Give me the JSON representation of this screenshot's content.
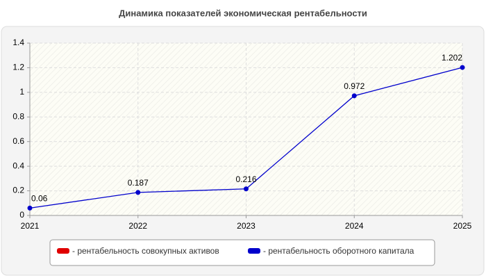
{
  "chart_data": {
    "type": "line",
    "title": "Динамика показателей экономическая рентабельности",
    "x": [
      2021,
      2022,
      2023,
      2024,
      2025
    ],
    "xlim": [
      2021,
      2025
    ],
    "xticks": [
      2021,
      2022,
      2023,
      2024,
      2025
    ],
    "ylim": [
      0,
      1.4
    ],
    "yticks": [
      0,
      0.2,
      0.4,
      0.6,
      0.8,
      1,
      1.2,
      1.4
    ],
    "grid": true,
    "series": [
      {
        "name": "- рентабельность совокупных активов",
        "color": "#e00000",
        "values": [
          null,
          null,
          null,
          null,
          null
        ]
      },
      {
        "name": "- рентабельность оборотного капитала",
        "color": "#0000cc",
        "values": [
          0.06,
          0.187,
          0.216,
          0.972,
          1.202
        ]
      }
    ]
  }
}
